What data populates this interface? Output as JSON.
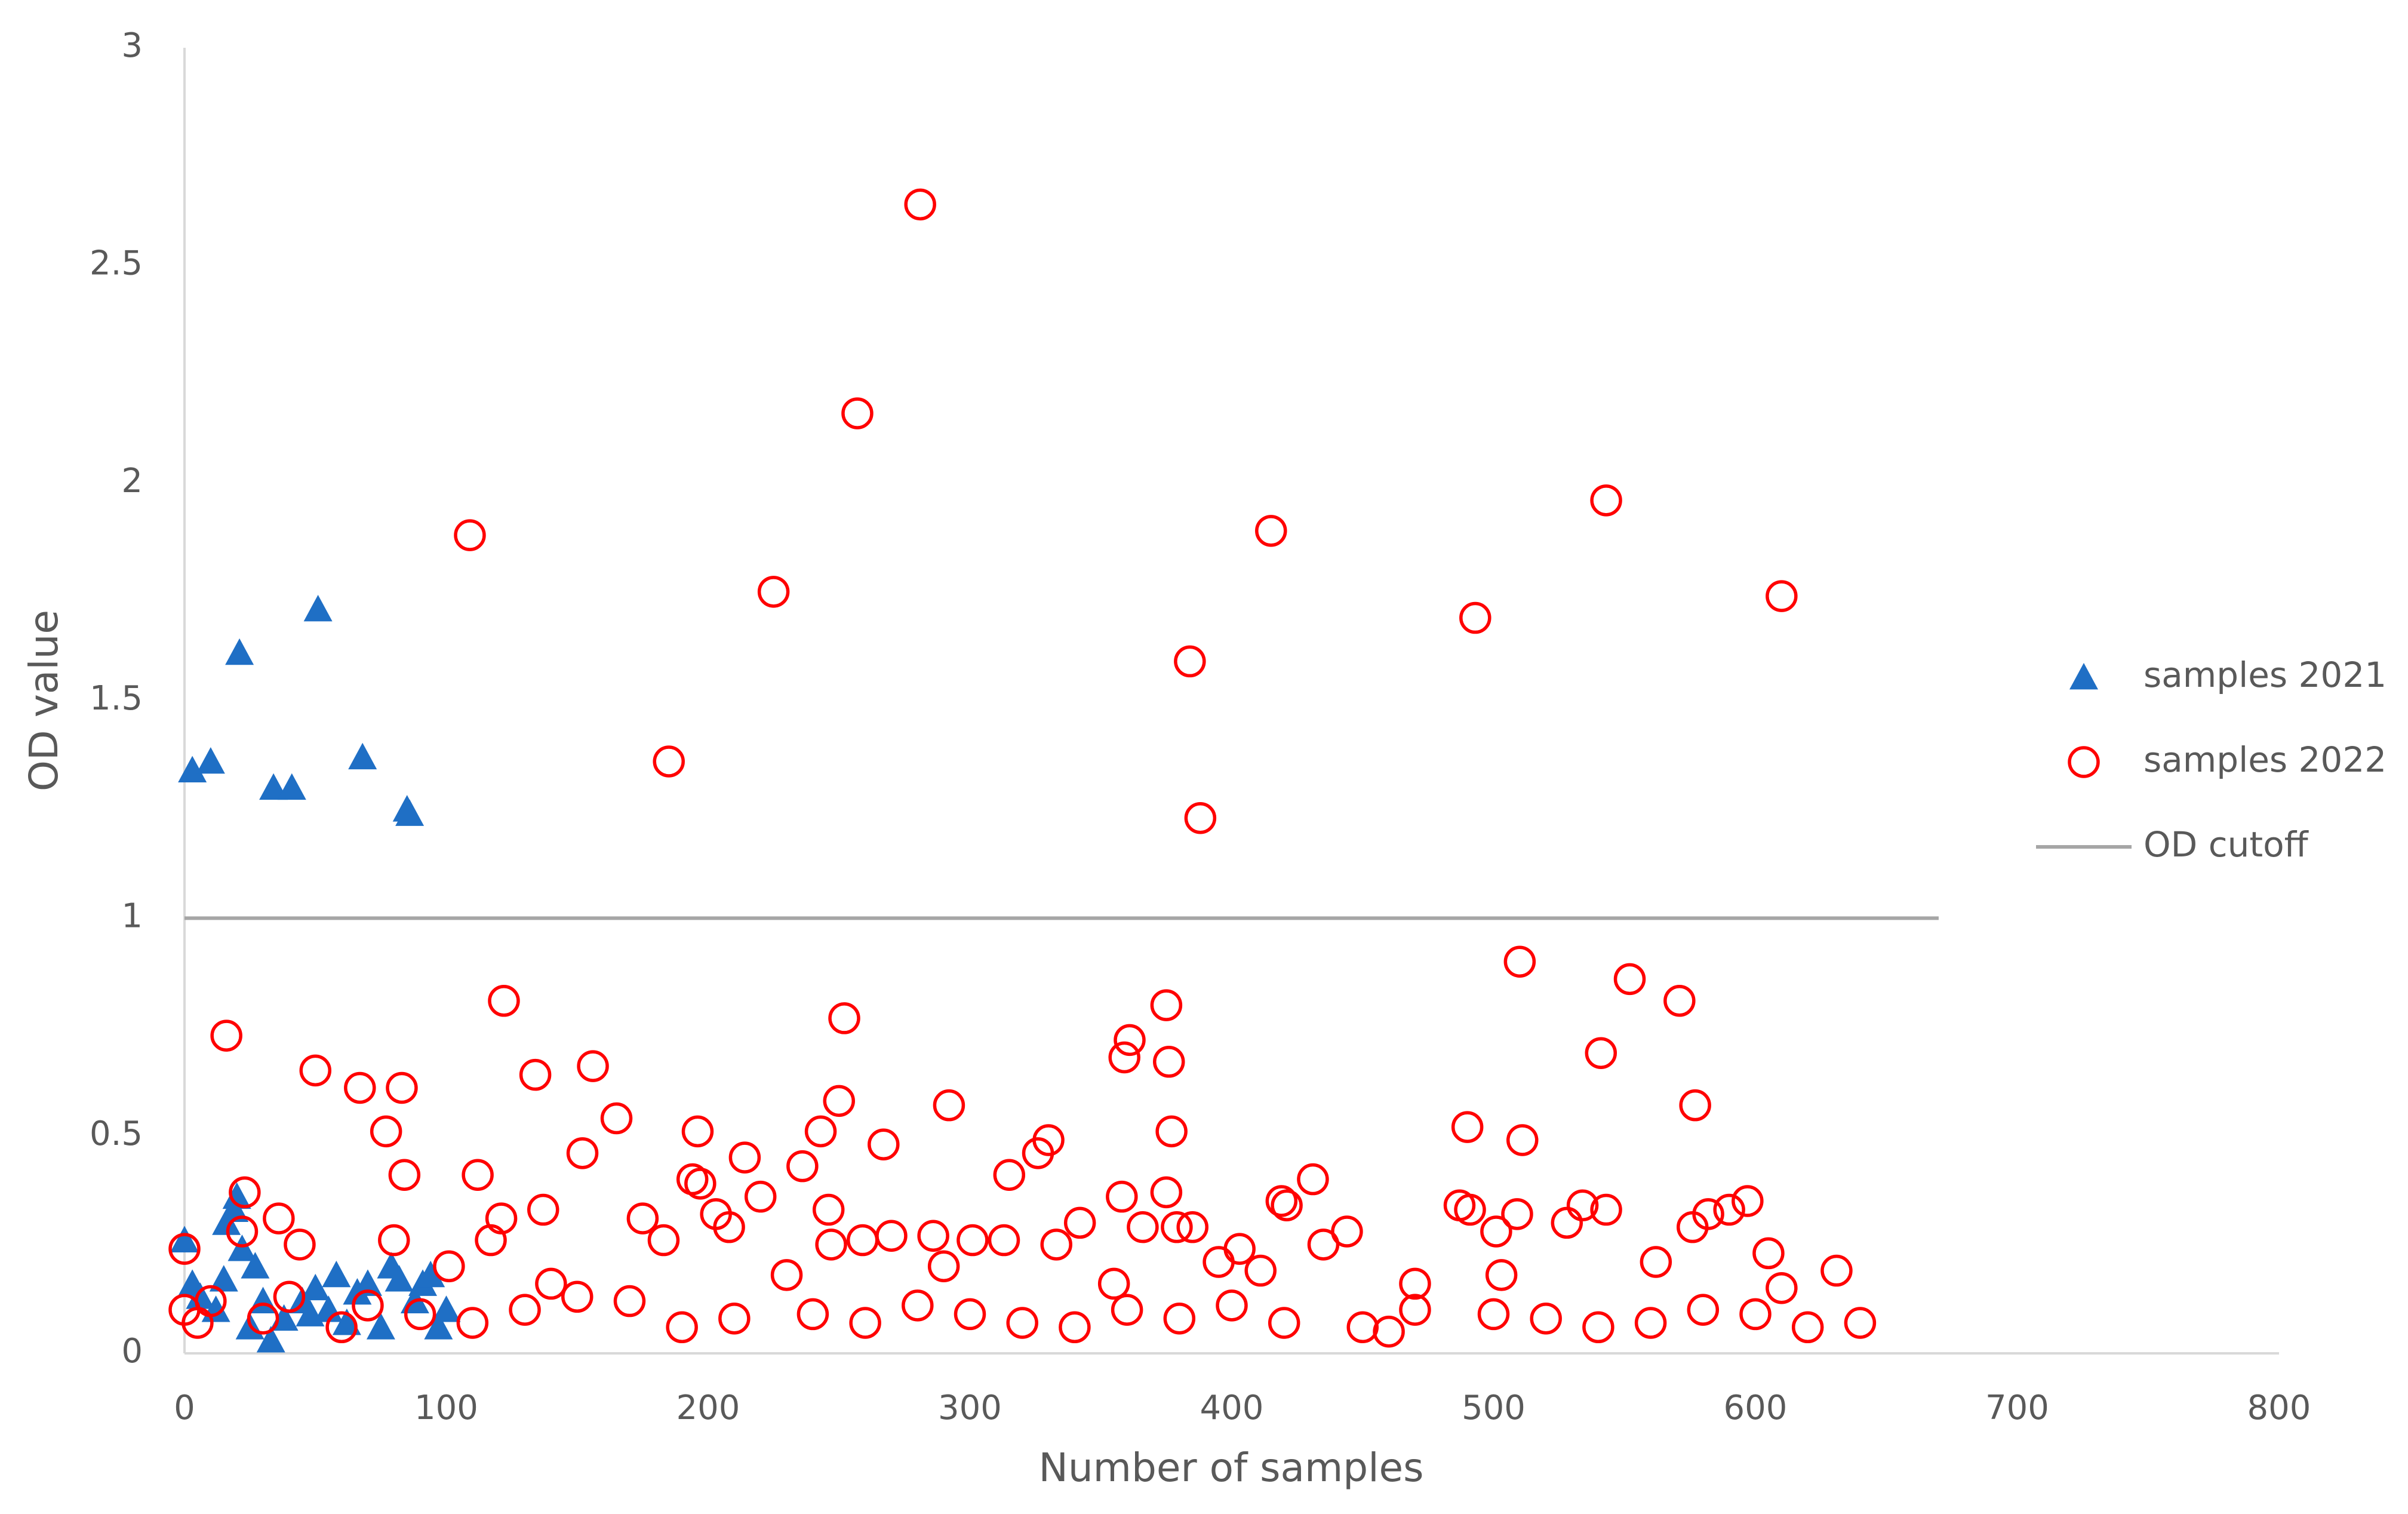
{
  "chart_data": {
    "type": "scatter",
    "xlabel": "Number of samples",
    "ylabel": "OD value",
    "xlim": [
      0,
      800
    ],
    "xticks": [
      0,
      100,
      200,
      300,
      400,
      500,
      600,
      700,
      800
    ],
    "ylim": [
      0,
      3
    ],
    "yticks": [
      0,
      0.5,
      1,
      1.5,
      2,
      2.5,
      3
    ],
    "grid": false,
    "legend": "right",
    "series": [
      {
        "name": "samples 2021",
        "color": "#1f6fc5",
        "marker": "triangle",
        "x": [
          3,
          10,
          21,
          34,
          41,
          51,
          68,
          85,
          86,
          0,
          3,
          6,
          12,
          16,
          19,
          20,
          22,
          27,
          30,
          33,
          38,
          45,
          50,
          55,
          58,
          62,
          66,
          70,
          75,
          79,
          82,
          88,
          91,
          94,
          97,
          100,
          15,
          25,
          48
        ],
        "values": [
          1.34,
          1.36,
          1.61,
          1.3,
          1.3,
          1.71,
          1.37,
          1.25,
          1.24,
          0.26,
          0.16,
          0.13,
          0.1,
          0.3,
          0.33,
          0.36,
          0.24,
          0.2,
          0.12,
          0.03,
          0.08,
          0.12,
          0.15,
          0.1,
          0.18,
          0.07,
          0.14,
          0.16,
          0.06,
          0.2,
          0.17,
          0.12,
          0.16,
          0.18,
          0.06,
          0.1,
          0.17,
          0.06,
          0.09
        ]
      },
      {
        "name": "samples 2022",
        "color": "#ff0000",
        "marker": "circle",
        "x": [
          109,
          225,
          257,
          281,
          185,
          384,
          388,
          415,
          493,
          543,
          610,
          510,
          552,
          571,
          541,
          577,
          511,
          490,
          16,
          122,
          50,
          67,
          83,
          77,
          84,
          134,
          156,
          165,
          152,
          112,
          252,
          250,
          243,
          267,
          292,
          196,
          214,
          236,
          330,
          326,
          315,
          375,
          361,
          359,
          376,
          377,
          375,
          358,
          379,
          385,
          419,
          431,
          421,
          403,
          0,
          36,
          23,
          22,
          44,
          80,
          101,
          121,
          117,
          137,
          175,
          183,
          194,
          197,
          208,
          203,
          220,
          246,
          247,
          259,
          270,
          286,
          301,
          313,
          333,
          342,
          366,
          395,
          411,
          435,
          444,
          487,
          491,
          501,
          509,
          528,
          534,
          543,
          562,
          576,
          582,
          590,
          597,
          605,
          610,
          631,
          460,
          0,
          5,
          10,
          30,
          60,
          90,
          130,
          170,
          210,
          260,
          300,
          340,
          380,
          420,
          470,
          520,
          560,
          600,
          640,
          620,
          580,
          540,
          500,
          450,
          400,
          360,
          320,
          280,
          240,
          190,
          150,
          110,
          70,
          40,
          503,
          470,
          140,
          230,
          355,
          290
        ],
        "values": [
          1.88,
          1.75,
          2.16,
          2.64,
          1.36,
          1.59,
          1.23,
          1.89,
          1.69,
          1.96,
          1.74,
          0.9,
          0.86,
          0.81,
          0.69,
          0.57,
          0.49,
          0.52,
          0.73,
          0.81,
          0.65,
          0.61,
          0.61,
          0.51,
          0.41,
          0.64,
          0.66,
          0.54,
          0.46,
          0.41,
          0.77,
          0.58,
          0.51,
          0.48,
          0.57,
          0.51,
          0.45,
          0.43,
          0.49,
          0.46,
          0.41,
          0.8,
          0.72,
          0.68,
          0.67,
          0.51,
          0.37,
          0.36,
          0.29,
          0.29,
          0.35,
          0.4,
          0.34,
          0.24,
          0.24,
          0.31,
          0.37,
          0.28,
          0.25,
          0.26,
          0.2,
          0.31,
          0.26,
          0.33,
          0.31,
          0.26,
          0.4,
          0.39,
          0.29,
          0.32,
          0.36,
          0.33,
          0.25,
          0.26,
          0.27,
          0.27,
          0.26,
          0.26,
          0.25,
          0.3,
          0.29,
          0.21,
          0.19,
          0.25,
          0.28,
          0.34,
          0.33,
          0.28,
          0.32,
          0.3,
          0.34,
          0.33,
          0.21,
          0.29,
          0.32,
          0.33,
          0.35,
          0.23,
          0.15,
          0.19,
          0.05,
          0.1,
          0.07,
          0.12,
          0.08,
          0.06,
          0.09,
          0.1,
          0.12,
          0.08,
          0.07,
          0.09,
          0.06,
          0.08,
          0.07,
          0.1,
          0.08,
          0.07,
          0.09,
          0.07,
          0.06,
          0.1,
          0.06,
          0.09,
          0.06,
          0.11,
          0.1,
          0.07,
          0.11,
          0.09,
          0.06,
          0.13,
          0.07,
          0.11,
          0.13,
          0.18,
          0.16,
          0.16,
          0.18,
          0.16,
          0.2
        ]
      },
      {
        "name": "OD cutoff",
        "color": "#a6a6a6",
        "marker": "line",
        "x": [
          0,
          670
        ],
        "values": [
          1,
          1
        ]
      }
    ]
  }
}
